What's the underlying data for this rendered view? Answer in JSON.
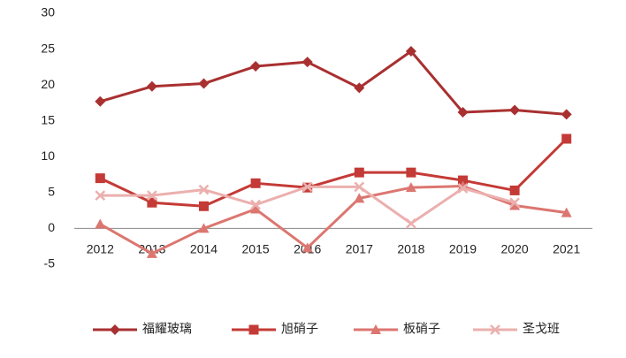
{
  "chart_data": {
    "type": "line",
    "categories": [
      "2012",
      "2013",
      "2014",
      "2015",
      "2016",
      "2017",
      "2018",
      "2019",
      "2020",
      "2021"
    ],
    "series": [
      {
        "name": "福耀玻璃",
        "color": "#a93030",
        "marker": "diamond",
        "values": [
          17.7,
          19.8,
          20.2,
          22.6,
          23.2,
          19.6,
          24.7,
          16.2,
          16.5,
          15.9
        ]
      },
      {
        "name": "旭硝子",
        "color": "#c43a36",
        "marker": "square",
        "values": [
          7.0,
          3.6,
          3.1,
          6.3,
          5.7,
          7.8,
          7.8,
          6.7,
          5.3,
          12.5
        ]
      },
      {
        "name": "板硝子",
        "color": "#dc7670",
        "marker": "triangle",
        "values": [
          0.6,
          -3.5,
          0,
          2.7,
          -2.7,
          4.2,
          5.7,
          5.9,
          3.2,
          2.2
        ]
      },
      {
        "name": "圣戈班",
        "color": "#ebb0ae",
        "marker": "x",
        "values": [
          4.6,
          4.6,
          5.4,
          3.3,
          5.8,
          5.8,
          0.7,
          5.6,
          3.6,
          null
        ]
      }
    ],
    "ylim": [
      -5,
      30
    ],
    "yticks": [
      -5,
      0,
      5,
      10,
      15,
      20,
      25,
      30
    ],
    "grid": false,
    "legend": "bottom"
  }
}
